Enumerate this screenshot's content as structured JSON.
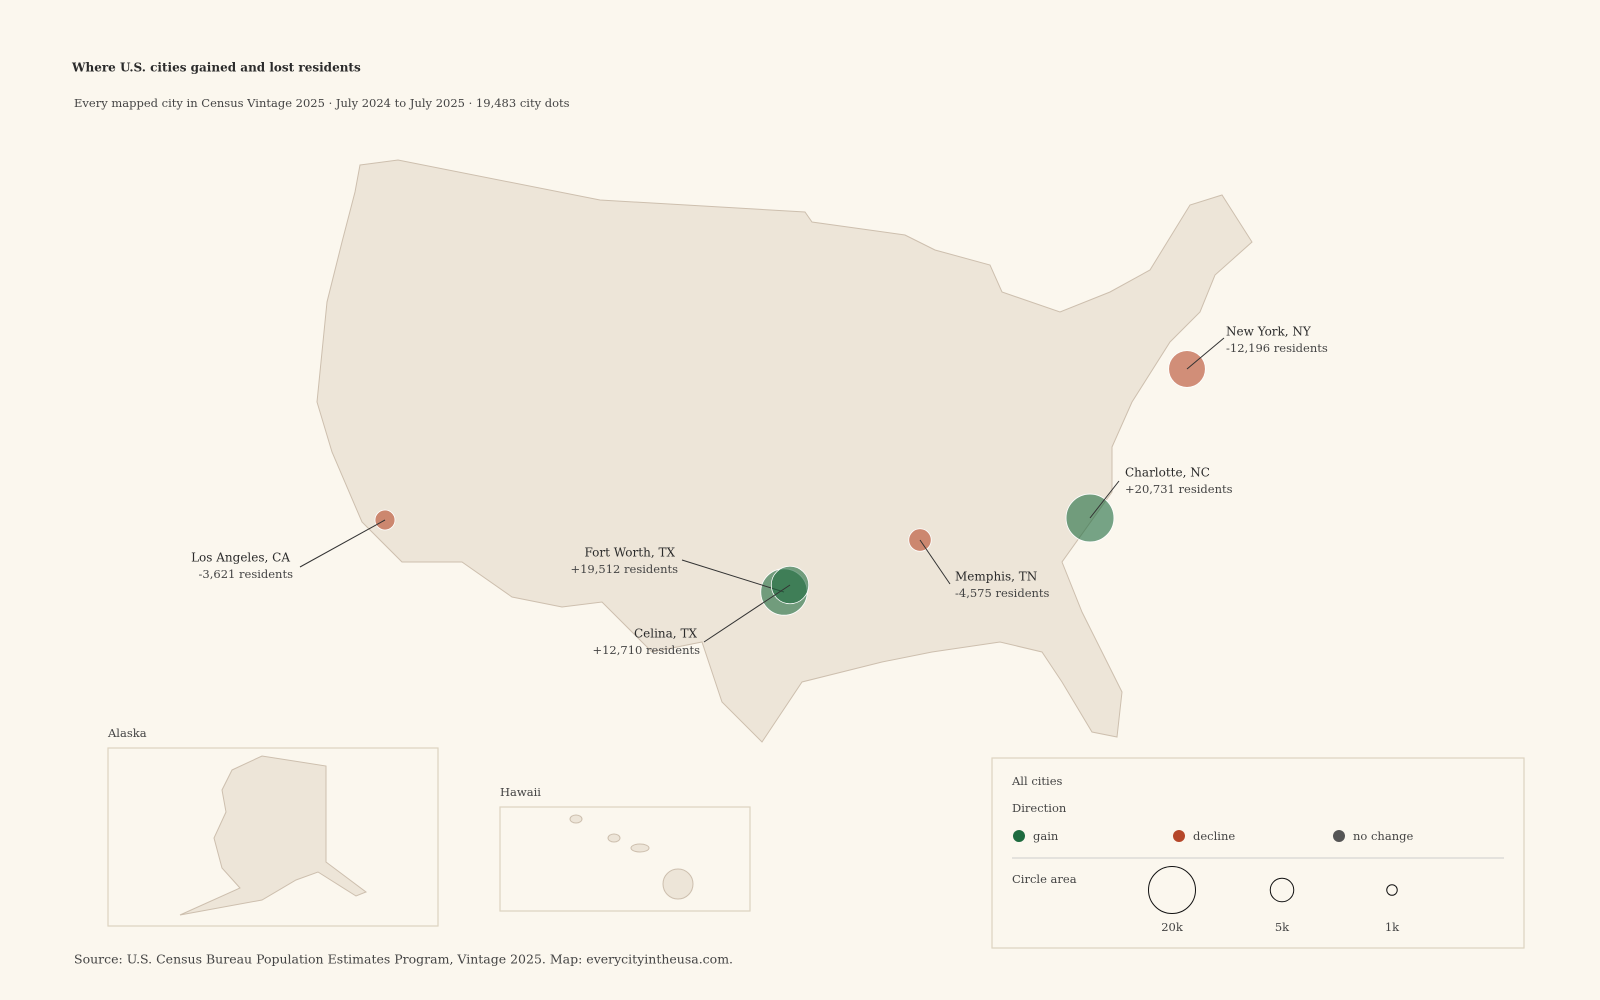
{
  "title": "Where U.S. cities gained and lost residents",
  "subtitle": "Every mapped city in Census Vintage 2025 · July 2024 to July 2025 · 19,483 city dots",
  "annotations": [
    {
      "city": "Los Angeles, CA",
      "change": -3621,
      "change_label": "-3,621 residents"
    },
    {
      "city": "Fort Worth, TX",
      "change": 19512,
      "change_label": "+19,512 residents"
    },
    {
      "city": "Celina, TX",
      "change": 12710,
      "change_label": "+12,710 residents"
    },
    {
      "city": "Memphis, TN",
      "change": -4575,
      "change_label": "-4,575 residents"
    },
    {
      "city": "Charlotte, NC",
      "change": 20731,
      "change_label": "+20,731 residents"
    },
    {
      "city": "New York, NY",
      "change": -12196,
      "change_label": "-12,196 residents"
    }
  ],
  "insets": [
    "Alaska",
    "Hawaii"
  ],
  "legend": {
    "title": "All cities",
    "direction_title": "Direction",
    "directions": [
      {
        "name": "gain",
        "color": "#1e6b3f"
      },
      {
        "name": "decline",
        "color": "#b5472a"
      },
      {
        "name": "no change",
        "color": "#555555"
      }
    ],
    "size_title": "Circle area",
    "sizes": [
      {
        "value": 20000,
        "label": "20k"
      },
      {
        "value": 5000,
        "label": "5k"
      },
      {
        "value": 1000,
        "label": "1k"
      }
    ]
  },
  "source": "Source: U.S. Census Bureau Population Estimates Program, Vintage 2025. Map: everycityintheusa.com."
}
